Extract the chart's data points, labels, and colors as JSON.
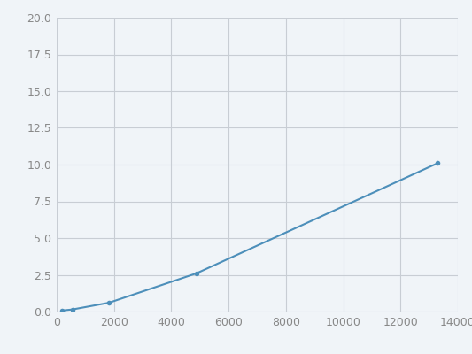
{
  "x": [
    183,
    549,
    1830,
    4880,
    13300
  ],
  "y": [
    0.07,
    0.14,
    0.6,
    2.6,
    10.1
  ],
  "line_color": "#4d8fba",
  "marker_color": "#4d8fba",
  "marker_size": 4,
  "line_width": 1.5,
  "xlim": [
    0,
    14000
  ],
  "ylim": [
    0,
    20.0
  ],
  "xticks": [
    0,
    2000,
    4000,
    6000,
    8000,
    10000,
    12000,
    14000
  ],
  "yticks": [
    0.0,
    2.5,
    5.0,
    7.5,
    10.0,
    12.5,
    15.0,
    17.5,
    20.0
  ],
  "grid_color": "#c8cdd4",
  "background_color": "#f0f4f8",
  "plot_bg_color": "#f0f4f8",
  "tick_fontsize": 9,
  "tick_color": "#888888"
}
